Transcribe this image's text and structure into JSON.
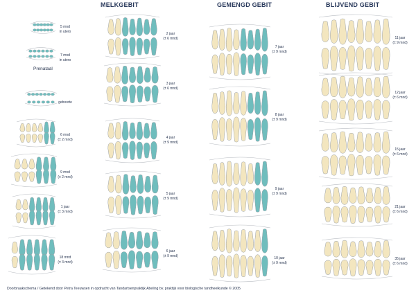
{
  "sections": {
    "melkgebit": "MELKGEBIT",
    "gemengd": "GEMENGD GEBIT",
    "blijvend": "BLIJVEND GEBIT"
  },
  "prenatal_label": "Prenataal",
  "colors": {
    "primary_tooth": "#6fbdbd",
    "permanent_tooth": "#f3e6bf",
    "outline": "#9aa0a6",
    "bone": "#e9e9e9"
  },
  "stages_left": [
    {
      "id": "5mnd",
      "line1": "5 mnd",
      "line2": "in utero"
    },
    {
      "id": "7mnd",
      "line1": "7 mnd",
      "line2": "in utero"
    },
    {
      "id": "geboorte",
      "line1": "geboorte",
      "line2": ""
    },
    {
      "id": "6mnd",
      "line1": "6 mnd",
      "line2": "(± 2 mnd)"
    },
    {
      "id": "9mnd",
      "line1": "9 mnd",
      "line2": "(± 2 mnd)"
    },
    {
      "id": "1jaar",
      "line1": "1 jaar",
      "line2": "(± 3 mnd)"
    },
    {
      "id": "18mnd",
      "line1": "18 mnd",
      "line2": "(± 3 mnd)"
    }
  ],
  "stages_melk": [
    {
      "id": "2jaar",
      "line1": "2 jaar",
      "line2": "(± 6 mnd)"
    },
    {
      "id": "3jaar",
      "line1": "3 jaar",
      "line2": "(± 6 mnd)"
    },
    {
      "id": "4jaar",
      "line1": "4 jaar",
      "line2": "(± 9 mnd)"
    },
    {
      "id": "5jaar",
      "line1": "5 jaar",
      "line2": "(± 9 mnd)"
    },
    {
      "id": "6jaar",
      "line1": "6 jaar",
      "line2": "(± 9 mnd)"
    }
  ],
  "stages_gemengd": [
    {
      "id": "7jaar",
      "line1": "7 jaar",
      "line2": "(± 9 mnd)"
    },
    {
      "id": "8jaar",
      "line1": "8 jaar",
      "line2": "(± 9 mnd)"
    },
    {
      "id": "9jaar",
      "line1": "9 jaar",
      "line2": "(± 9 mnd)"
    },
    {
      "id": "10jaar",
      "line1": "10 jaar",
      "line2": "(± 9 mnd)"
    }
  ],
  "stages_blijvend": [
    {
      "id": "11jaar",
      "line1": "11 jaar",
      "line2": "(± 9 mnd)"
    },
    {
      "id": "12jaar",
      "line1": "12 jaar",
      "line2": "(± 6 mnd)"
    },
    {
      "id": "15jaar",
      "line1": "15 jaar",
      "line2": "(± 6 mnd)"
    },
    {
      "id": "21jaar",
      "line1": "21 jaar",
      "line2": "(± 6 mnd)"
    },
    {
      "id": "35jaar",
      "line1": "35 jaar",
      "line2": "(± 6 mnd)"
    }
  ],
  "footer": "Doorbraakschema / Getekend door Petra Teeuwsen   in opdracht van Tandartsenpraktijk Abeling bv.   praktijk voor biologische tandheelkunde   © 2005"
}
